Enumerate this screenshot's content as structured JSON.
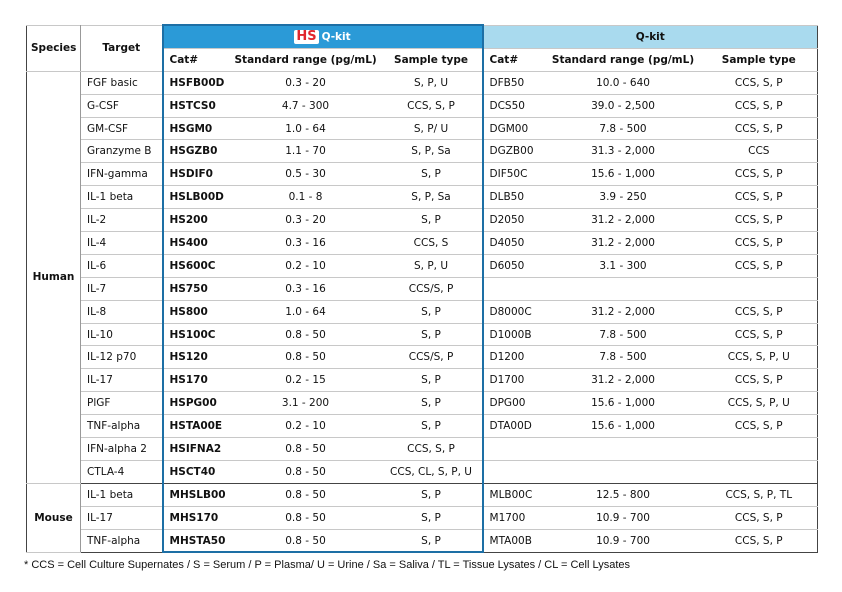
{
  "header": {
    "species": "Species",
    "target": "Target",
    "hs_brand": "HS",
    "hs_kit": "Q-kit",
    "q_kit": "Q-kit",
    "hs_columns": [
      "Cat#",
      "Standard range (pg/mL)",
      "Sample type"
    ],
    "q_columns": [
      "Cat#",
      "Standard range (pg/mL)",
      "Sample type"
    ]
  },
  "groups": [
    {
      "species": "Human",
      "rows": [
        {
          "target": "FGF basic",
          "hs": [
            "HSFB00D",
            "0.3 - 20",
            "S, P, U"
          ],
          "q": [
            "DFB50",
            "10.0 - 640",
            "CCS, S, P"
          ]
        },
        {
          "target": "G-CSF",
          "hs": [
            "HSTCS0",
            "4.7 - 300",
            "CCS, S, P"
          ],
          "q": [
            "DCS50",
            "39.0 - 2,500",
            "CCS, S, P"
          ]
        },
        {
          "target": "GM-CSF",
          "hs": [
            "HSGM0",
            "1.0 - 64",
            "S, P/ U"
          ],
          "q": [
            "DGM00",
            "7.8 - 500",
            "CCS, S, P"
          ]
        },
        {
          "target": "Granzyme B",
          "hs": [
            "HSGZB0",
            "1.1 - 70",
            "S, P, Sa"
          ],
          "q": [
            "DGZB00",
            "31.3 - 2,000",
            "CCS"
          ]
        },
        {
          "target": "IFN-gamma",
          "hs": [
            "HSDIF0",
            "0.5 - 30",
            "S, P"
          ],
          "q": [
            "DIF50C",
            "15.6 - 1,000",
            "CCS, S, P"
          ]
        },
        {
          "target": "IL-1 beta",
          "hs": [
            "HSLB00D",
            "0.1 - 8",
            "S, P, Sa"
          ],
          "q": [
            "DLB50",
            "3.9 - 250",
            "CCS, S, P"
          ]
        },
        {
          "target": "IL-2",
          "hs": [
            "HS200",
            "0.3 - 20",
            "S, P"
          ],
          "q": [
            "D2050",
            "31.2 - 2,000",
            "CCS, S, P"
          ]
        },
        {
          "target": "IL-4",
          "hs": [
            "HS400",
            "0.3 - 16",
            "CCS, S"
          ],
          "q": [
            "D4050",
            "31.2 - 2,000",
            "CCS, S, P"
          ]
        },
        {
          "target": "IL-6",
          "hs": [
            "HS600C",
            "0.2 - 10",
            "S, P, U"
          ],
          "q": [
            "D6050",
            "3.1 - 300",
            "CCS, S, P"
          ]
        },
        {
          "target": "IL-7",
          "hs": [
            "HS750",
            "0.3 - 16",
            "CCS/S, P"
          ]
        },
        {
          "target": "IL-8",
          "hs": [
            "HS800",
            "1.0 - 64",
            "S, P"
          ],
          "q": [
            "D8000C",
            "31.2 - 2,000",
            "CCS, S, P"
          ]
        },
        {
          "target": "IL-10",
          "hs": [
            "HS100C",
            "0.8 - 50",
            "S, P"
          ],
          "q": [
            "D1000B",
            "7.8 - 500",
            "CCS, S, P"
          ]
        },
        {
          "target": "IL-12 p70",
          "hs": [
            "HS120",
            "0.8 - 50",
            "CCS/S, P"
          ],
          "q": [
            "D1200",
            "7.8 - 500",
            "CCS, S, P, U"
          ]
        },
        {
          "target": "IL-17",
          "hs": [
            "HS170",
            "0.2 - 15",
            "S, P"
          ],
          "q": [
            "D1700",
            "31.2 - 2,000",
            "CCS, S, P"
          ]
        },
        {
          "target": "PlGF",
          "hs": [
            "HSPG00",
            "3.1 - 200",
            "S, P"
          ],
          "q": [
            "DPG00",
            "15.6 - 1,000",
            "CCS, S, P, U"
          ]
        },
        {
          "target": "TNF-alpha",
          "hs": [
            "HSTA00E",
            "0.2 - 10",
            "S, P"
          ],
          "q": [
            "DTA00D",
            "15.6 - 1,000",
            "CCS, S, P"
          ]
        },
        {
          "target": "IFN-alpha 2",
          "hs": [
            "HSIFNA2",
            "0.8 - 50",
            "CCS, S, P"
          ]
        },
        {
          "target": "CTLA-4",
          "hs": [
            "HSCT40",
            "0.8 - 50",
            "CCS, CL, S, P, U"
          ]
        }
      ]
    },
    {
      "species": "Mouse",
      "rows": [
        {
          "target": "IL-1 beta",
          "hs": [
            "MHSLB00",
            "0.8 - 50",
            "S, P"
          ],
          "q": [
            "MLB00C",
            "12.5 - 800",
            "CCS, S, P, TL"
          ]
        },
        {
          "target": "IL-17",
          "hs": [
            "MHS170",
            "0.8 - 50",
            "S, P"
          ],
          "q": [
            "M1700",
            "10.9 - 700",
            "CCS, S, P"
          ]
        },
        {
          "target": "TNF-alpha",
          "hs": [
            "MHSTA50",
            "0.8 - 50",
            "S, P"
          ],
          "q": [
            "MTA00B",
            "10.9 - 700",
            "CCS, S, P"
          ]
        }
      ]
    }
  ],
  "footnote": "* CCS = Cell Culture Supernates / S = Serum / P = Plasma/ U = Urine / Sa = Saliva / TL = Tissue Lysates / CL =  Cell Lysates"
}
